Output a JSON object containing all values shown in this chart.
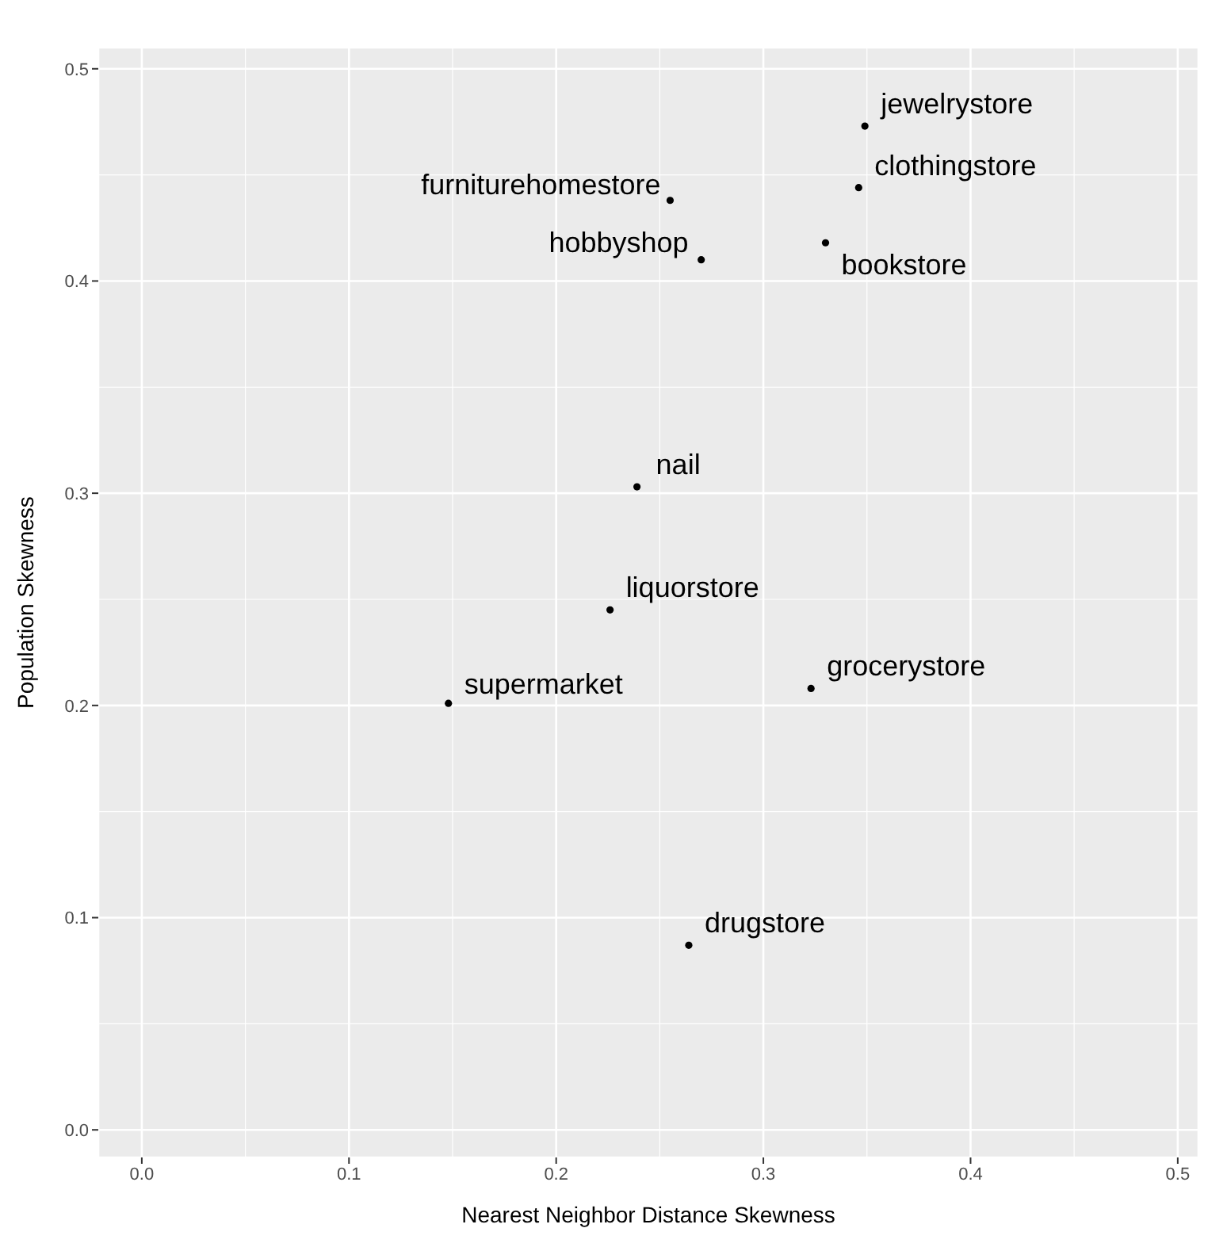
{
  "chart_data": {
    "type": "scatter",
    "xlabel": "Nearest Neighbor Distance Skewness",
    "ylabel": "Population Skewness",
    "x": [
      0.349,
      0.346,
      0.255,
      0.27,
      0.33,
      0.239,
      0.226,
      0.148,
      0.323,
      0.264
    ],
    "series": [
      {
        "color": "#000000",
        "values": [
          0.473,
          0.444,
          0.438,
          0.41,
          0.418,
          0.303,
          0.245,
          0.201,
          0.208,
          0.087
        ]
      }
    ],
    "annotations": [
      {
        "text": "jewelrystore",
        "x": 0.349,
        "y": 0.473
      },
      {
        "text": "clothingstore",
        "x": 0.346,
        "y": 0.444
      },
      {
        "text": "furniturehomestore",
        "x": 0.255,
        "y": 0.438
      },
      {
        "text": "hobbyshop",
        "x": 0.27,
        "y": 0.41
      },
      {
        "text": "bookstore",
        "x": 0.33,
        "y": 0.418
      },
      {
        "text": "nail",
        "x": 0.239,
        "y": 0.303
      },
      {
        "text": "liquorstore",
        "x": 0.226,
        "y": 0.245
      },
      {
        "text": "supermarket",
        "x": 0.148,
        "y": 0.201
      },
      {
        "text": "grocerystore",
        "x": 0.323,
        "y": 0.208
      },
      {
        "text": "drugstore",
        "x": 0.264,
        "y": 0.087
      }
    ],
    "xlim": [
      -0.021,
      0.51
    ],
    "ylim": [
      -0.013,
      0.51
    ],
    "xticks": [
      {
        "value": 0,
        "label": "0.0"
      },
      0.1,
      0.2,
      0.3,
      0.4,
      {
        "value": 0.5,
        "label": "0.5"
      }
    ],
    "yticks": [
      {
        "value": 0,
        "label": "0.0"
      },
      0.1,
      0.2,
      0.3,
      0.4,
      {
        "value": 0.5,
        "label": "0.5"
      }
    ],
    "grid": true,
    "marker": "circle",
    "legend": false
  }
}
